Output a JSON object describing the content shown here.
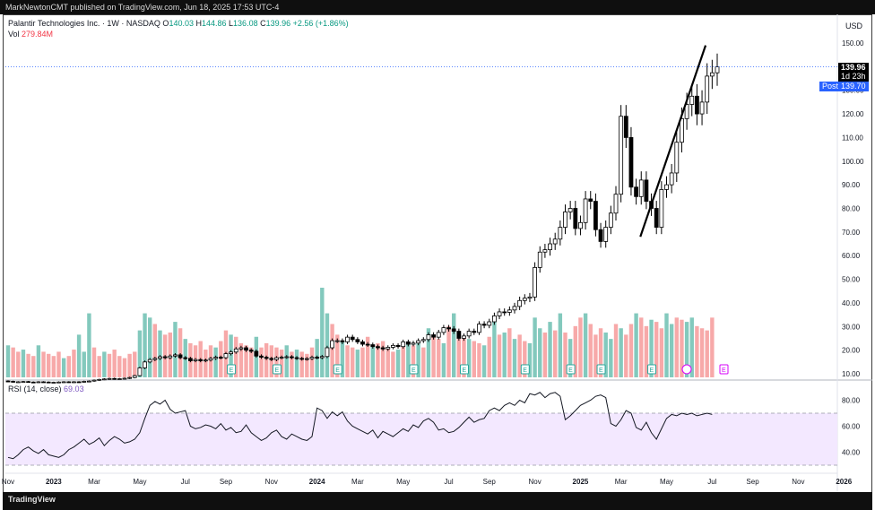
{
  "header": {
    "publisher": "MarkNewtonCMT published on TradingView.com, Jun 18, 2025 17:53 UTC-4"
  },
  "footer": {
    "brand": "TradingView"
  },
  "legend": {
    "symbol": "Palantir Technologies Inc. · 1W · NASDAQ",
    "o_label": "O",
    "o": "140.03",
    "h_label": "H",
    "h": "144.86",
    "l_label": "L",
    "l": "136.08",
    "c_label": "C",
    "c": "139.96",
    "change": "+2.56 (+1.86%)",
    "vol_label": "Vol",
    "vol": "279.84M",
    "rsi_label": "RSI (14, close)",
    "rsi": "69.03"
  },
  "price_axis": {
    "currency": "USD"
  },
  "tags": {
    "last_price": "139.96",
    "countdown": "1d 23h",
    "post_label": "Post",
    "post_price": "139.70"
  },
  "colors": {
    "up": "#089981",
    "down": "#f23645",
    "vol_up": "#83c9bd",
    "vol_down": "#f7a9a9",
    "rsi_line": "#131722",
    "rsi_band": "#f3e8ff",
    "trendline": "#000000",
    "post": "#2962ff",
    "earnings": "#26a69a"
  },
  "chart_data": [
    {
      "type": "candlestick",
      "title": "Palantir Technologies Inc. · 1W · NASDAQ",
      "ylabel": "USD",
      "ylim": [
        10,
        150
      ],
      "y_ticks": [
        "10.00",
        "20.00",
        "30.00",
        "40.00",
        "50.00",
        "60.00",
        "70.00",
        "80.00",
        "90.00",
        "100.00",
        "110.00",
        "120.00",
        "130.00",
        "140.00",
        "150.00"
      ],
      "x_ticks": [
        "Nov",
        "2023",
        "Mar",
        "May",
        "Jul",
        "Sep",
        "Nov",
        "2024",
        "Mar",
        "May",
        "Jul",
        "Sep",
        "Nov",
        "2025",
        "Mar",
        "May",
        "Jul",
        "Sep",
        "Nov",
        "2026"
      ],
      "x_tick_weeks": [
        0,
        9,
        17,
        26,
        35,
        43,
        52,
        61,
        69,
        78,
        87,
        95,
        104,
        113,
        121,
        130,
        139,
        147,
        156,
        165
      ],
      "last_close": 139.96,
      "post_market": 139.7,
      "close_weekly": [
        6.8,
        6.5,
        6.6,
        6.7,
        6.5,
        6.4,
        6.6,
        6.5,
        6.3,
        6.4,
        6.5,
        6.6,
        6.4,
        6.6,
        6.5,
        6.8,
        6.9,
        7.3,
        7.6,
        7.8,
        8.0,
        7.8,
        7.9,
        8.1,
        8.4,
        9.2,
        12.5,
        15.0,
        16.0,
        16.5,
        17.2,
        16.8,
        17.5,
        18.0,
        16.8,
        16.5,
        15.5,
        16.0,
        15.5,
        15.8,
        16.5,
        17.0,
        16.8,
        18.5,
        19.2,
        20.5,
        21.0,
        20.0,
        19.5,
        17.5,
        17.0,
        16.5,
        16.0,
        16.8,
        17.0,
        17.2,
        16.8,
        16.5,
        16.2,
        16.4,
        17.0,
        16.8,
        17.3,
        21.0,
        24.0,
        24.0,
        23.5,
        25.5,
        24.5,
        23.5,
        22.5,
        22.3,
        21.5,
        21.0,
        20.5,
        21.2,
        22.0,
        21.5,
        23.5,
        22.5,
        23.0,
        24.0,
        24.5,
        26.5,
        25.5,
        27.5,
        29.5,
        29.0,
        28.0,
        25.0,
        26.0,
        28.0,
        27.5,
        31.0,
        30.5,
        32.0,
        34.5,
        36.2,
        36.0,
        37.0,
        38.5,
        41.0,
        42.0,
        42.5,
        55.0,
        61.5,
        62.5,
        65.0,
        67.0,
        72.0,
        78.5,
        80.0,
        71.5,
        74.0,
        84.0,
        83.0,
        71.0,
        66.0,
        72.0,
        78.0,
        86.0,
        119.0,
        110.0,
        89.0,
        85.0,
        92.0,
        83.0,
        80.0,
        72.0,
        88.0,
        90.0,
        95.0,
        108.0,
        118.0,
        124.0,
        127.5,
        120.0,
        125.0,
        136.0,
        137.4,
        139.96
      ],
      "volume_up_weeks": [
        0,
        3,
        6,
        11,
        14,
        15,
        16,
        19,
        26,
        27,
        28,
        30,
        33,
        35,
        41,
        44,
        49,
        55,
        57,
        61,
        62,
        63,
        66,
        69,
        72,
        77,
        79,
        81,
        83,
        86,
        88,
        91,
        94,
        96,
        98,
        100,
        103,
        104,
        105,
        107,
        109,
        111,
        114,
        118,
        119,
        121,
        124,
        127,
        130,
        131,
        134,
        135
      ],
      "volume_down_weeks": [
        1,
        2,
        4,
        5,
        7,
        8,
        9,
        10,
        12,
        13,
        17,
        18,
        20,
        21,
        22,
        23,
        24,
        25,
        29,
        31,
        32,
        34,
        36,
        37,
        38,
        39,
        40,
        42,
        43,
        45,
        46,
        47,
        48,
        50,
        51,
        52,
        53,
        54,
        56,
        58,
        59,
        60,
        64,
        65,
        67,
        68,
        70,
        71,
        73,
        74,
        75,
        76,
        78,
        80,
        82,
        84,
        85,
        87,
        89,
        90,
        92,
        93,
        95,
        97,
        99,
        101,
        102,
        106,
        108,
        110,
        112,
        113,
        115,
        116,
        117,
        120,
        122,
        123,
        125,
        126,
        128,
        129,
        132,
        133,
        136,
        137,
        138,
        139
      ],
      "volume_scale_M": [
        150,
        140,
        120,
        130,
        110,
        100,
        150,
        120,
        110,
        100,
        120,
        90,
        100,
        130,
        200,
        120,
        300,
        140,
        100,
        120,
        110,
        130,
        100,
        90,
        110,
        120,
        220,
        300,
        280,
        250,
        220,
        200,
        210,
        260,
        230,
        180,
        160,
        150,
        170,
        130,
        150,
        140,
        170,
        220,
        200,
        190,
        160,
        150,
        140,
        190,
        140,
        160,
        150,
        140,
        130,
        150,
        120,
        130,
        120,
        110,
        140,
        180,
        420,
        300,
        250,
        200,
        170,
        150,
        140,
        130,
        140,
        190,
        150,
        160,
        170,
        140,
        120,
        130,
        150,
        160,
        150,
        170,
        140,
        230,
        200,
        180,
        160,
        240,
        300,
        200,
        190,
        180,
        170,
        160,
        150,
        190,
        270,
        200,
        210,
        230,
        180,
        200,
        170,
        160,
        280,
        230,
        210,
        260,
        220,
        300,
        210,
        180,
        240,
        280,
        300,
        250,
        200,
        230,
        210,
        180,
        250,
        230,
        200,
        250,
        300,
        280,
        240,
        270,
        260,
        230,
        300,
        250,
        280,
        270,
        260,
        280,
        240,
        230,
        220,
        280
      ]
    },
    {
      "type": "line",
      "title": "RSI (14, close)",
      "ylim": [
        30,
        90
      ],
      "y_ticks": [
        "40.00",
        "60.00",
        "80.00"
      ],
      "band": [
        30,
        70
      ],
      "last": 69.03,
      "values": [
        36,
        35,
        38,
        42,
        44,
        41,
        39,
        42,
        38,
        37,
        36,
        38,
        42,
        44,
        47,
        50,
        46,
        48,
        51,
        45,
        49,
        52,
        50,
        47,
        48,
        50,
        55,
        66,
        76,
        79,
        77,
        80,
        73,
        70,
        71,
        72,
        60,
        58,
        59,
        61,
        60,
        58,
        62,
        57,
        59,
        55,
        56,
        61,
        55,
        52,
        49,
        51,
        55,
        57,
        52,
        50,
        54,
        52,
        50,
        49,
        52,
        74,
        72,
        66,
        71,
        68,
        71,
        64,
        60,
        58,
        56,
        54,
        57,
        51,
        56,
        54,
        52,
        55,
        58,
        56,
        61,
        59,
        64,
        66,
        63,
        57,
        58,
        55,
        56,
        59,
        63,
        67,
        63,
        65,
        66,
        72,
        74,
        72,
        76,
        78,
        76,
        80,
        78,
        85,
        84,
        86,
        82,
        85,
        86,
        83,
        65,
        68,
        72,
        76,
        78,
        80,
        83,
        84,
        82,
        62,
        60,
        65,
        72,
        70,
        59,
        57,
        63,
        55,
        50,
        58,
        66,
        69,
        68,
        70,
        69,
        70,
        68,
        69,
        70,
        69
      ]
    }
  ]
}
